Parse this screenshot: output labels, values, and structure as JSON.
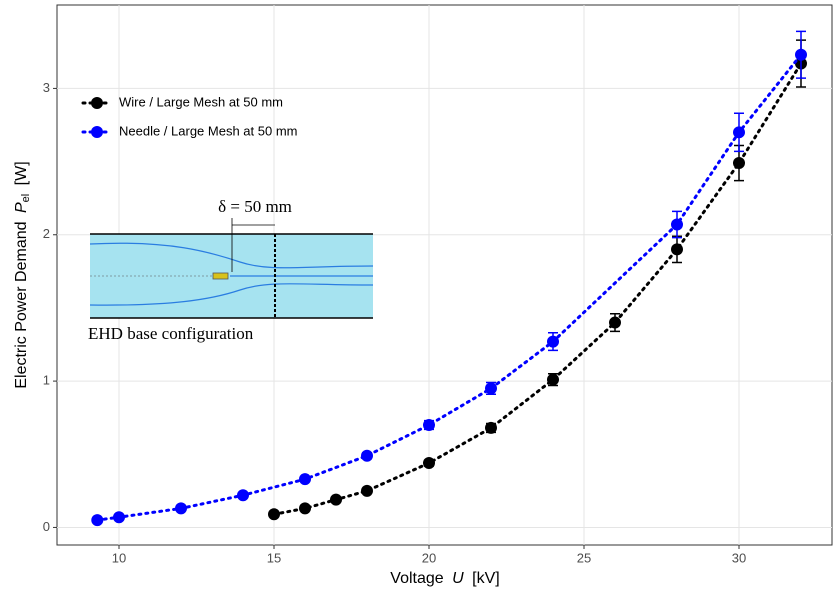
{
  "chart_data": {
    "type": "scatter",
    "x_label": {
      "text": "Voltage",
      "symbol": "U",
      "unit": "[kV]"
    },
    "y_label": {
      "text": "Electric Power Demand",
      "symbol": "P",
      "subscript": "el",
      "unit": "[W]"
    },
    "xlim": [
      8,
      33
    ],
    "ylim": [
      -0.12,
      3.57
    ],
    "xticks": [
      10,
      15,
      20,
      25,
      30
    ],
    "yticks": [
      0,
      1,
      2,
      3
    ],
    "grid": true,
    "legend_position": "top-left",
    "series": [
      {
        "name": "Wire / Large Mesh at 50 mm",
        "color": "#000000",
        "x": [
          15,
          16,
          17,
          18,
          20,
          22,
          24,
          26,
          28,
          30,
          32
        ],
        "values": [
          0.09,
          0.13,
          0.19,
          0.25,
          0.44,
          0.68,
          1.01,
          1.4,
          1.9,
          2.49,
          3.17
        ],
        "errors": [
          0.01,
          0.01,
          0.01,
          0.01,
          0.02,
          0.03,
          0.04,
          0.06,
          0.09,
          0.12,
          0.16
        ]
      },
      {
        "name": "Needle / Large Mesh at 50 mm",
        "color": "#0000ff",
        "x": [
          9.3,
          10,
          12,
          14,
          16,
          18,
          20,
          22,
          24,
          28,
          30,
          32
        ],
        "values": [
          0.05,
          0.07,
          0.13,
          0.22,
          0.33,
          0.49,
          0.7,
          0.95,
          1.27,
          2.07,
          2.7,
          3.23
        ],
        "errors": [
          0.01,
          0.01,
          0.01,
          0.01,
          0.01,
          0.02,
          0.03,
          0.04,
          0.06,
          0.09,
          0.13,
          0.16
        ]
      }
    ],
    "inset": {
      "dimension_label": "δ = 50 mm",
      "caption": "EHD base configuration"
    }
  }
}
